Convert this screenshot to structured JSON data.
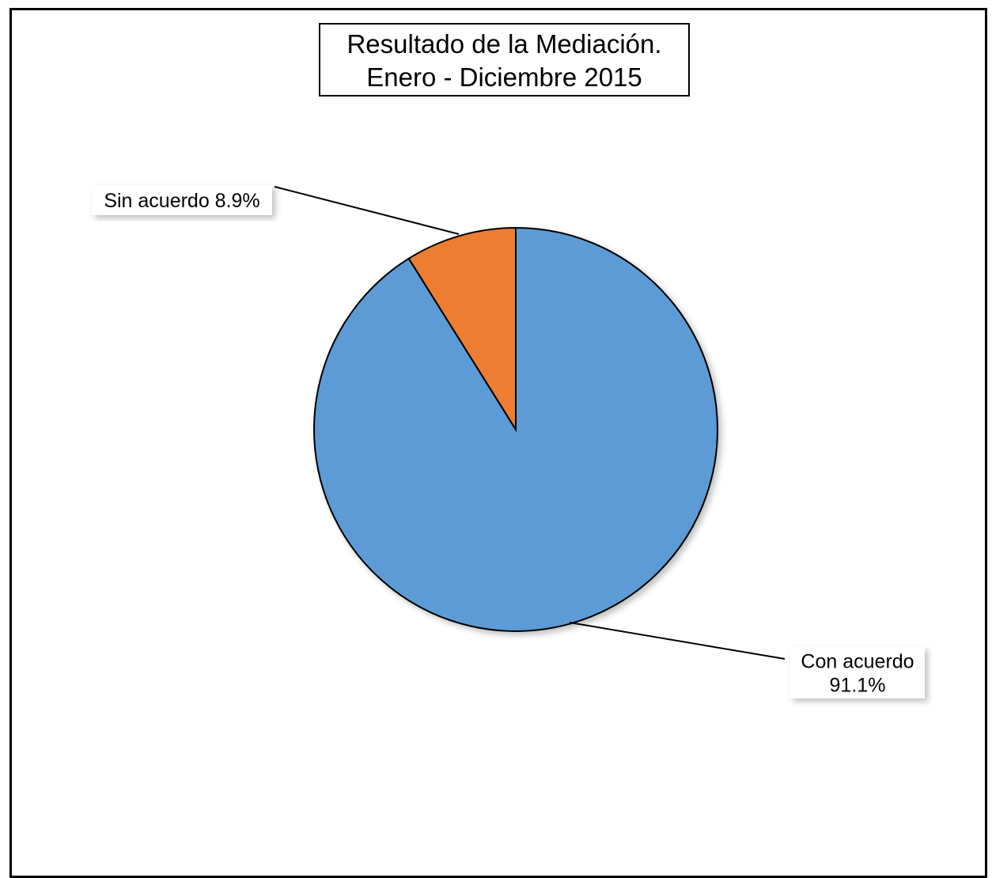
{
  "chart_data": {
    "type": "pie",
    "title": "Resultado de la Mediación.\nEnero - Diciembre 2015",
    "title_lines": [
      "Resultado de la Mediación.",
      "Enero - Diciembre 2015"
    ],
    "start_angle_deg": 0,
    "direction": "clockwise",
    "slices": [
      {
        "label": "Con acuerdo",
        "value": 91.1,
        "display": "91.1%",
        "color": "#5b9bd5",
        "label_lines": [
          "Con acuerdo",
          "91.1%"
        ]
      },
      {
        "label": "Sin acuerdo",
        "value": 8.9,
        "display": "8.9%",
        "color": "#ed7d31",
        "label_lines": [
          "Sin acuerdo 8.9%"
        ]
      }
    ]
  }
}
